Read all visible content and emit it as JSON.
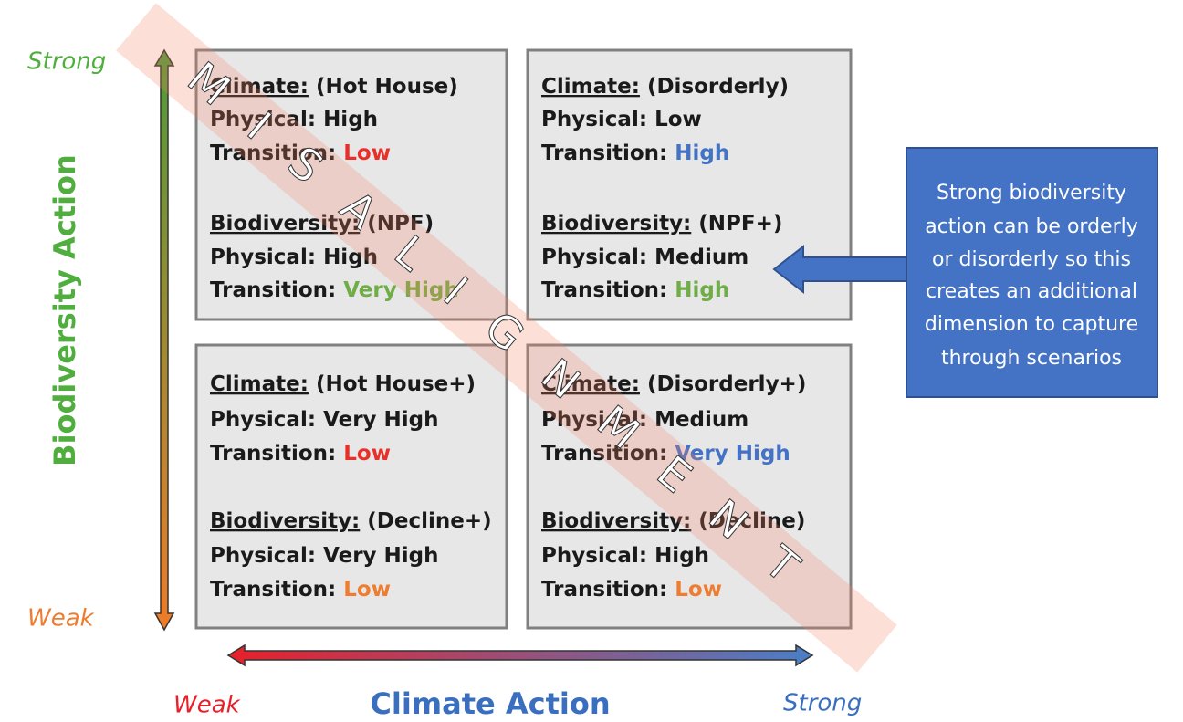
{
  "axes": {
    "y_title": "Biodiversity Action",
    "y_high": "Strong",
    "y_low": "Weak",
    "x_title": "Climate Action",
    "x_low": "Weak",
    "x_high": "Strong"
  },
  "quadrants": [
    {
      "blocks": [
        {
          "label": "Climate:",
          "scenario": "(Hot House)",
          "physical_label": "Physical:",
          "physical": "High",
          "transition_label": "Transition:",
          "transition": "Low",
          "transition_color": "#e8302a"
        },
        {
          "label": "Biodiversity:",
          "scenario": "(NPF)",
          "physical_label": "Physical:",
          "physical": "High",
          "transition_label": "Transition:",
          "transition": "Very High",
          "transition_color": "#70ad47"
        }
      ]
    },
    {
      "blocks": [
        {
          "label": "Climate:",
          "scenario": "(Disorderly)",
          "physical_label": "Physical:",
          "physical": "Low",
          "transition_label": "Transition:",
          "transition": "High",
          "transition_color": "#4472c4"
        },
        {
          "label": "Biodiversity:",
          "scenario": "(NPF+)",
          "physical_label": "Physical:",
          "physical": "Medium",
          "transition_label": "Transition:",
          "transition": "High",
          "transition_color": "#70ad47"
        }
      ]
    },
    {
      "blocks": [
        {
          "label": "Climate:",
          "scenario": "(Hot House+)",
          "physical_label": "Physical:",
          "physical": "Very High",
          "transition_label": "Transition:",
          "transition": "Low",
          "transition_color": "#e8302a"
        },
        {
          "label": "Biodiversity:",
          "scenario": "(Decline+)",
          "physical_label": "Physical:",
          "physical": "Very High",
          "transition_label": "Transition:",
          "transition": "Low",
          "transition_color": "#ed7d31"
        }
      ]
    },
    {
      "blocks": [
        {
          "label": "Climate:",
          "scenario": "(Disorderly+)",
          "physical_label": "Physical:",
          "physical": "Medium",
          "transition_label": "Transition:",
          "transition": "Very High",
          "transition_color": "#4472c4"
        },
        {
          "label": "Biodiversity:",
          "scenario": "(Decline)",
          "physical_label": "Physical:",
          "physical": "High",
          "transition_label": "Transition:",
          "transition": "Low",
          "transition_color": "#ed7d31"
        }
      ]
    }
  ],
  "callout": {
    "lines": [
      "Strong biodiversity",
      "action can be orderly",
      "or disorderly so this",
      "creates an additional",
      "dimension to capture",
      "through scenarios"
    ]
  },
  "watermark": "MISALIGNMENT"
}
